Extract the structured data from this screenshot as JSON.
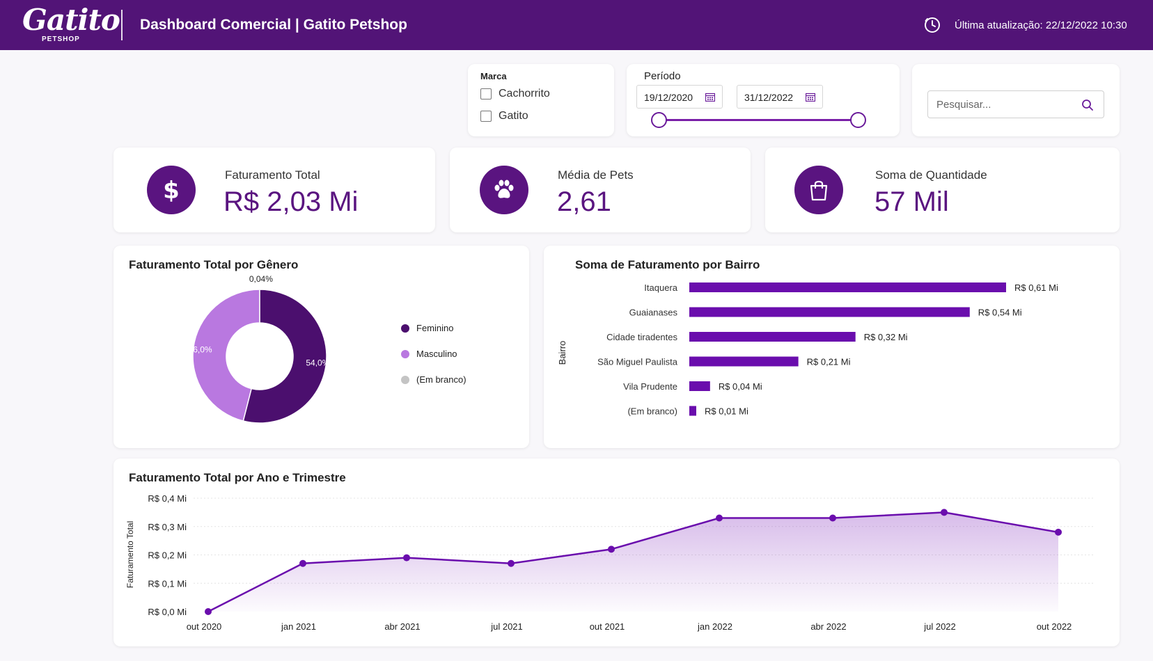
{
  "header": {
    "logo_text": "Gatito",
    "logo_sub": "PETSHOP",
    "title": "Dashboard Comercial  |  Gatito Petshop",
    "last_update": "Última atualização: 22/12/2022 10:30",
    "background": "#521477"
  },
  "filters": {
    "marca": {
      "label": "Marca",
      "options": [
        {
          "label": "Cachorrito",
          "checked": false
        },
        {
          "label": "Gatito",
          "checked": false
        }
      ]
    },
    "periodo": {
      "label": "Período",
      "start": "19/12/2020",
      "end": "31/12/2022"
    },
    "search": {
      "placeholder": "Pesquisar..."
    }
  },
  "kpis": [
    {
      "label": "Faturamento Total",
      "value": "R$ 2,03 Mi",
      "icon": "dollar-icon"
    },
    {
      "label": "Média de Pets",
      "value": "2,61",
      "icon": "paw-icon"
    },
    {
      "label": "Soma de Quantidade",
      "value": "57 Mil",
      "icon": "shopping-bag-icon"
    }
  ],
  "colors": {
    "accent": "#5a1480",
    "feminino": "#4b0f6e",
    "masculino": "#b978e0",
    "em_branco": "#c4c4c4",
    "bar": "#6a0dad",
    "line": "#6a0dad"
  },
  "chart_data": [
    {
      "type": "pie",
      "title": "Faturamento Total por Gênero",
      "categories": [
        "Feminino",
        "Masculino",
        "(Em branco)"
      ],
      "values": [
        54.0,
        46.0,
        0.04
      ],
      "labels": [
        "54,0%",
        "46,0%",
        "0,04%"
      ],
      "legend": "right"
    },
    {
      "type": "bar",
      "title": "Soma de Faturamento por Bairro",
      "ylabel": "Bairro",
      "categories": [
        "Itaquera",
        "Guaianases",
        "Cidade tiradentes",
        "São Miguel Paulista",
        "Vila Prudente",
        "(Em branco)"
      ],
      "values": [
        0.61,
        0.54,
        0.32,
        0.21,
        0.04,
        0.01
      ],
      "labels": [
        "R$ 0,61 Mi",
        "R$ 0,54 Mi",
        "R$ 0,32 Mi",
        "R$ 0,21 Mi",
        "R$ 0,04 Mi",
        "R$ 0,01 Mi"
      ],
      "orientation": "horizontal"
    },
    {
      "type": "area",
      "title": "Faturamento Total por Ano e Trimestre",
      "ylabel": "Faturamento Total",
      "x": [
        "out 2020",
        "jan 2021",
        "abr 2021",
        "jul 2021",
        "out 2021",
        "jan 2022",
        "abr 2022",
        "jul 2022",
        "out 2022"
      ],
      "values": [
        0.0,
        0.17,
        0.19,
        0.17,
        0.22,
        0.33,
        0.33,
        0.35,
        0.28
      ],
      "yticks": [
        "R$ 0,0 Mi",
        "R$ 0,1 Mi",
        "R$ 0,2 Mi",
        "R$ 0,3 Mi",
        "R$ 0,4 Mi"
      ],
      "ylim": [
        0,
        0.4
      ],
      "grid": true
    }
  ]
}
